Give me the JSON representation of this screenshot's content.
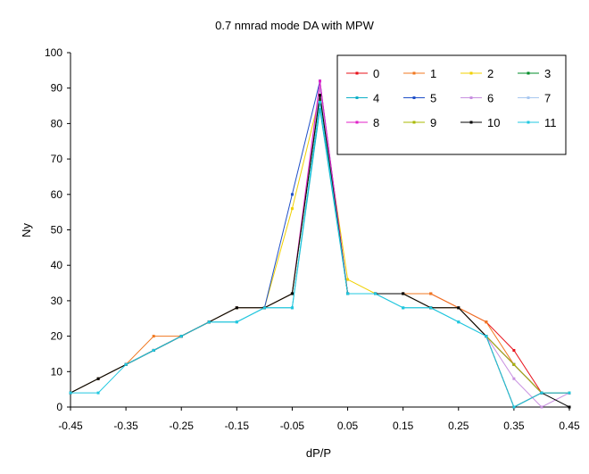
{
  "chart_data": {
    "type": "line",
    "title": "0.7 nmrad mode DA with MPW",
    "xlabel": "dP/P",
    "ylabel": "Ny",
    "xlim": [
      -0.45,
      0.45
    ],
    "ylim": [
      0,
      100
    ],
    "x_ticks": [
      "-0.45",
      "-0.35",
      "-0.25",
      "-0.15",
      "-0.05",
      "0.05",
      "0.15",
      "0.25",
      "0.35",
      "0.45"
    ],
    "y_ticks": [
      "0",
      "10",
      "20",
      "30",
      "40",
      "50",
      "60",
      "70",
      "80",
      "90",
      "100"
    ],
    "grid": false,
    "legend_position": "top-right",
    "x": [
      -0.45,
      -0.4,
      -0.35,
      -0.3,
      -0.25,
      -0.2,
      -0.15,
      -0.1,
      -0.05,
      0.0,
      0.05,
      0.1,
      0.15,
      0.2,
      0.25,
      0.3,
      0.35,
      0.4,
      0.45
    ],
    "series": [
      {
        "name": "0",
        "color": "#e8101a",
        "values": [
          4,
          8,
          12,
          16,
          20,
          24,
          28,
          28,
          32,
          88,
          32,
          32,
          32,
          32,
          28,
          24,
          16,
          4,
          4
        ]
      },
      {
        "name": "1",
        "color": "#f07820",
        "values": [
          4,
          8,
          12,
          20,
          20,
          24,
          28,
          28,
          32,
          88,
          32,
          32,
          32,
          32,
          28,
          24,
          12,
          4,
          4
        ]
      },
      {
        "name": "2",
        "color": "#f0d000",
        "values": [
          4,
          8,
          12,
          16,
          20,
          24,
          28,
          28,
          56,
          88,
          36,
          32,
          32,
          28,
          28,
          20,
          12,
          4,
          4
        ]
      },
      {
        "name": "3",
        "color": "#008c28",
        "values": [
          4,
          8,
          12,
          16,
          20,
          24,
          28,
          28,
          32,
          88,
          32,
          32,
          32,
          28,
          28,
          20,
          12,
          4,
          4
        ]
      },
      {
        "name": "4",
        "color": "#10b0c8",
        "values": [
          4,
          8,
          12,
          16,
          20,
          24,
          24,
          28,
          28,
          84,
          32,
          32,
          28,
          28,
          24,
          20,
          12,
          4,
          4
        ]
      },
      {
        "name": "5",
        "color": "#2050c8",
        "values": [
          4,
          8,
          12,
          16,
          20,
          24,
          28,
          28,
          60,
          92,
          32,
          32,
          32,
          28,
          28,
          20,
          12,
          4,
          4
        ]
      },
      {
        "name": "6",
        "color": "#c890e0",
        "values": [
          4,
          8,
          12,
          16,
          20,
          24,
          28,
          28,
          32,
          90,
          32,
          32,
          32,
          28,
          28,
          20,
          8,
          0,
          4
        ]
      },
      {
        "name": "7",
        "color": "#a8c8f0",
        "values": [
          4,
          8,
          12,
          16,
          20,
          24,
          28,
          28,
          32,
          88,
          32,
          32,
          32,
          28,
          28,
          20,
          12,
          4,
          4
        ]
      },
      {
        "name": "8",
        "color": "#e020c8",
        "values": [
          4,
          8,
          12,
          16,
          20,
          24,
          28,
          28,
          32,
          92,
          32,
          32,
          32,
          28,
          28,
          20,
          12,
          4,
          4
        ]
      },
      {
        "name": "9",
        "color": "#a8b800",
        "values": [
          4,
          8,
          12,
          16,
          20,
          24,
          28,
          28,
          32,
          88,
          32,
          32,
          32,
          28,
          28,
          20,
          12,
          4,
          4
        ]
      },
      {
        "name": "10",
        "color": "#000000",
        "values": [
          4,
          8,
          12,
          16,
          20,
          24,
          28,
          28,
          32,
          88,
          32,
          32,
          32,
          28,
          28,
          20,
          0,
          4,
          0
        ]
      },
      {
        "name": "11",
        "color": "#20c8e0",
        "values": [
          4,
          4,
          12,
          16,
          20,
          24,
          24,
          28,
          28,
          86,
          32,
          32,
          28,
          28,
          24,
          20,
          0,
          4,
          4
        ]
      }
    ]
  }
}
